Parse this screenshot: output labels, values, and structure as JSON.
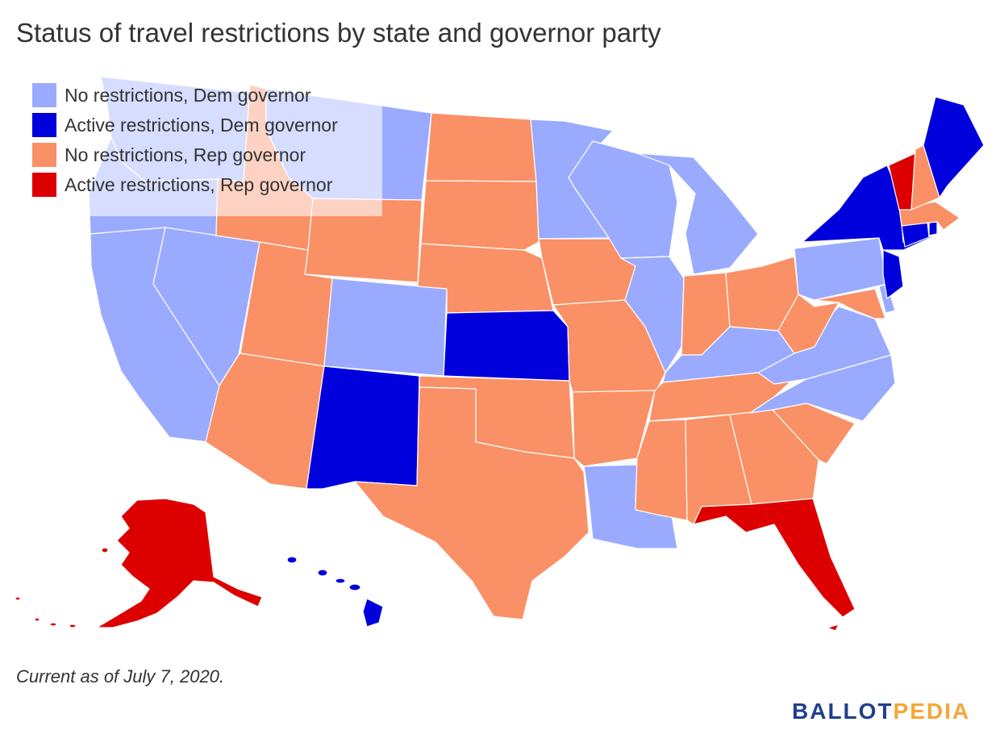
{
  "title": "Status of travel restrictions by state and governor party",
  "legend": [
    {
      "label": "No restrictions, Dem governor",
      "color": "#9aabff"
    },
    {
      "label": "Active restrictions, Dem governor",
      "color": "#0000dd"
    },
    {
      "label": "No restrictions, Rep governor",
      "color": "#fa9066"
    },
    {
      "label": "Active restrictions, Rep governor",
      "color": "#dd0000"
    }
  ],
  "note": "Current as of July 7, 2020.",
  "logo": {
    "part1": "BALLOT",
    "part2": "PEDIA"
  },
  "states": {
    "no_restrictions_dem": [
      "WA",
      "OR",
      "CA",
      "NV",
      "MT",
      "CO",
      "MN",
      "WI",
      "MI",
      "IL",
      "KY",
      "PA",
      "VA",
      "NC",
      "LA",
      "DE"
    ],
    "active_restrictions_dem": [
      "NM",
      "KS",
      "NY",
      "NJ",
      "CT",
      "RI",
      "ME",
      "HI"
    ],
    "no_restrictions_rep": [
      "ID",
      "WY",
      "UT",
      "AZ",
      "ND",
      "SD",
      "NE",
      "TX",
      "OK",
      "IA",
      "MO",
      "AR",
      "MS",
      "AL",
      "TN",
      "GA",
      "SC",
      "IN",
      "OH",
      "WV",
      "MD",
      "NH",
      "MA"
    ],
    "active_restrictions_rep": [
      "VT",
      "FL",
      "AK"
    ]
  }
}
